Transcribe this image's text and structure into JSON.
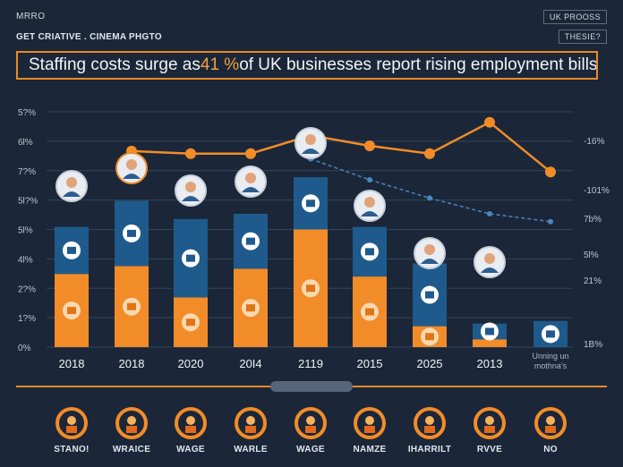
{
  "header": {
    "brand": "MRRO",
    "subtitle": "GET CRIATIVE . CINEMA PHGTO",
    "badge_top": "UK PROOSS",
    "badge_bottom": "THESIE?"
  },
  "title": {
    "prefix": "Staffing costs surge as ",
    "highlight": "41 %",
    "suffix": " of UK businesses report rising employment bills"
  },
  "colors": {
    "background": "#1b2738",
    "orange": "#f28c28",
    "blue": "#1f5a8c",
    "line": "#4a86c0",
    "accent": "#e88a26"
  },
  "chart_data": {
    "type": "bar",
    "left_axis_ticks": [
      "5?%",
      "6l%",
      "7?%",
      "5l?%",
      "5l%",
      "4l%",
      "2?%",
      "1?%",
      "0%"
    ],
    "right_axis_ticks": [
      "-16%",
      "-101%",
      "7b%",
      "5l%",
      "21%",
      "1B%"
    ],
    "categories": [
      "2018",
      "2018",
      "2020",
      "20I4",
      "2119",
      "2015",
      "2025",
      "2013",
      "Unning un mothna's"
    ],
    "series": [
      {
        "values": [
          2.8,
          3.1,
          1.9,
          3.0,
          4.5,
          2.7,
          0.8,
          0.3,
          0
        ]
      },
      {
        "values": [
          1.8,
          2.5,
          3.0,
          2.1,
          2.0,
          1.9,
          2.4,
          0.6,
          1.0
        ]
      }
    ],
    "lines": [
      {
        "values": [
          null,
          7.5,
          7.4,
          7.4,
          8.1,
          7.7,
          7.4,
          8.6,
          6.7
        ]
      },
      {
        "values": [
          null,
          null,
          null,
          null,
          7.2,
          6.4,
          5.7,
          5.1,
          4.8
        ]
      }
    ],
    "ylim": [
      0,
      9
    ],
    "grid": true
  },
  "bottom_labels": [
    "STANO!",
    "WRAICE",
    "WAGE",
    "WARLE",
    "WAGE",
    "NAMZE",
    "IHARRILT",
    "RVVE",
    "NO"
  ],
  "bottom_icons": [
    "worker-icon",
    "gauge-icon",
    "team-icon",
    "check-icon",
    "gauge-icon",
    "people-icon",
    "person-icon",
    "desk-icon",
    "figure-icon"
  ]
}
